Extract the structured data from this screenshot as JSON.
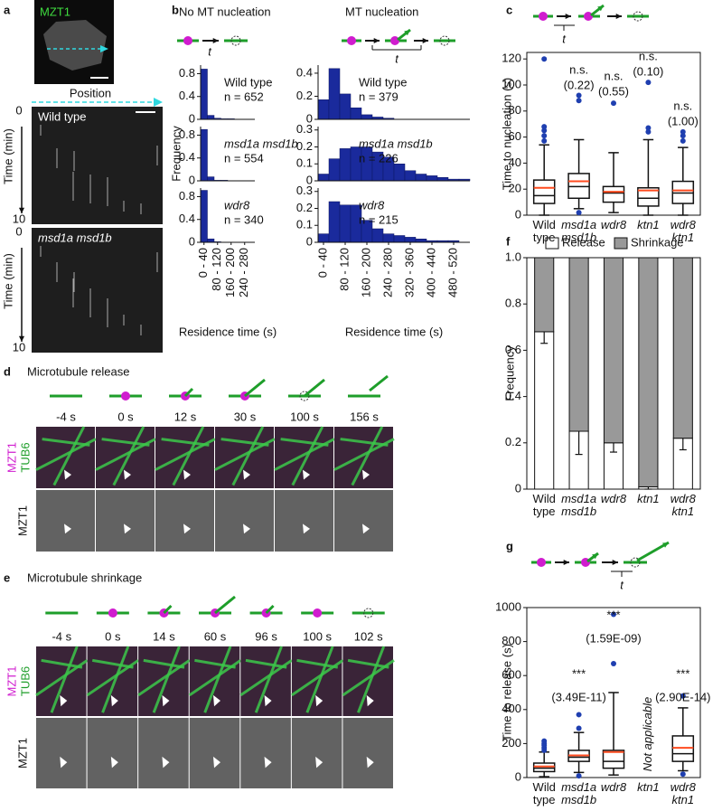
{
  "panel_labels": [
    "a",
    "b",
    "c",
    "d",
    "e",
    "f",
    "g"
  ],
  "panel_a": {
    "image_label": "MZT1",
    "position_label": "Position",
    "kymographs": [
      {
        "label": "Wild type",
        "time_label": "Time (min)",
        "ticks": [
          0,
          10
        ]
      },
      {
        "label": "msd1a msd1b",
        "time_label": "Time (min)",
        "ticks": [
          0,
          10
        ]
      }
    ]
  },
  "panel_b": {
    "headings": [
      "No MT nucleation",
      "MT nucleation"
    ],
    "diagram_labels": [
      "t",
      "t"
    ]
  },
  "panel_c": {
    "diagram_label": "t"
  },
  "panel_g": {
    "diagram_label": "t"
  },
  "panel_d": {
    "title": "Microtubule release",
    "times": [
      "-4 s",
      "0 s",
      "12 s",
      "30 s",
      "100 s",
      "156 s"
    ],
    "merge_labels": [
      "MZT1",
      "TUB6"
    ],
    "gray_label": "MZT1"
  },
  "panel_e": {
    "title": "Microtubule shrinkage",
    "times": [
      "-4 s",
      "0 s",
      "14 s",
      "60 s",
      "96 s",
      "100 s",
      "102 s"
    ],
    "merge_labels": [
      "MZT1",
      "TUB6"
    ],
    "gray_label": "MZT1"
  },
  "chart_data": [
    {
      "type": "histogram",
      "label": "Wild type",
      "n_label": "n = 652",
      "color": "#1a2a9c",
      "bins": [
        0,
        40,
        80,
        120,
        160,
        200,
        240,
        280,
        320
      ],
      "values": [
        0.88,
        0.07,
        0.02,
        0.01,
        0.01,
        0,
        0,
        0
      ],
      "xlim": [
        0,
        320
      ],
      "ylim": [
        0,
        0.95
      ],
      "yticks": [
        0,
        0.4,
        0.8
      ]
    },
    {
      "type": "histogram",
      "label": "msd1a msd1b",
      "n_label": "n = 554",
      "color": "#1a2a9c",
      "y_label": "Frequency",
      "bins": [
        0,
        40,
        80,
        120,
        160,
        200,
        240,
        280,
        320
      ],
      "values": [
        0.9,
        0.07,
        0.01,
        0.01,
        0,
        0,
        0,
        0
      ],
      "xlim": [
        0,
        320
      ],
      "ylim": [
        0,
        0.95
      ],
      "yticks": [
        0,
        0.4,
        0.8
      ]
    },
    {
      "type": "histogram",
      "label": "wdr8",
      "n_label": "n = 340",
      "color": "#1a2a9c",
      "x_label": "Residence time (s)",
      "bins": [
        0,
        40,
        80,
        120,
        160,
        200,
        240,
        280,
        320
      ],
      "values": [
        0.91,
        0.06,
        0.01,
        0,
        0,
        0,
        0,
        0
      ],
      "xlim": [
        0,
        320
      ],
      "ylim": [
        0,
        0.95
      ],
      "yticks": [
        0,
        0.4,
        0.8
      ],
      "xticks": [
        {
          "value": 20,
          "label": "0 - 40"
        },
        {
          "value": 100,
          "label": "80 - 120"
        },
        {
          "value": 180,
          "label": "160 - 200"
        },
        {
          "value": 260,
          "label": "240 - 280"
        }
      ]
    },
    {
      "type": "histogram",
      "label": "Wild type",
      "n_label": "n = 379",
      "color": "#1a2a9c",
      "bins": [
        0,
        40,
        80,
        120,
        160,
        200,
        240,
        280,
        320,
        360,
        400,
        440,
        480,
        520,
        560
      ],
      "values": [
        0.17,
        0.44,
        0.22,
        0.1,
        0.04,
        0.02,
        0.01,
        0,
        0,
        0,
        0,
        0,
        0,
        0
      ],
      "xlim": [
        0,
        560
      ],
      "ylim": [
        0,
        0.47
      ],
      "yticks": [
        0,
        0.2,
        0.4
      ]
    },
    {
      "type": "histogram",
      "label": "msd1a msd1b",
      "n_label": "n = 226",
      "color": "#1a2a9c",
      "bins": [
        0,
        40,
        80,
        120,
        160,
        200,
        240,
        280,
        320,
        360,
        400,
        440,
        480,
        520,
        560
      ],
      "values": [
        0.04,
        0.13,
        0.19,
        0.2,
        0.2,
        0.17,
        0.14,
        0.1,
        0.06,
        0.04,
        0.03,
        0.02,
        0.01,
        0.01
      ],
      "xlim": [
        0,
        560
      ],
      "ylim": [
        0,
        0.32
      ],
      "yticks": [
        0,
        0.1,
        0.2,
        0.3
      ]
    },
    {
      "type": "histogram",
      "label": "wdr8",
      "n_label": "n = 215",
      "color": "#1a2a9c",
      "x_label": "Residence time (s)",
      "bins": [
        0,
        40,
        80,
        120,
        160,
        200,
        240,
        280,
        320,
        360,
        400,
        440,
        480,
        520,
        560
      ],
      "values": [
        0.05,
        0.24,
        0.22,
        0.22,
        0.13,
        0.08,
        0.05,
        0.04,
        0.03,
        0.02,
        0.01,
        0.01,
        0.01,
        0
      ],
      "xlim": [
        0,
        560
      ],
      "ylim": [
        0,
        0.32
      ],
      "yticks": [
        0,
        0.1,
        0.2,
        0.3
      ],
      "xticks": [
        {
          "value": 20,
          "label": "0 - 40"
        },
        {
          "value": 100,
          "label": "80 - 120"
        },
        {
          "value": 180,
          "label": "160 - 200"
        },
        {
          "value": 260,
          "label": "240 - 280"
        },
        {
          "value": 340,
          "label": "320 - 360"
        },
        {
          "value": 420,
          "label": "400 - 440"
        },
        {
          "value": 500,
          "label": "480 - 520"
        }
      ]
    },
    {
      "type": "box",
      "y_label": "Time to nucleation (s)",
      "color": "#1f3fb0",
      "mean_color": "#ff4b1f",
      "categories": [
        "Wild type",
        "msd1a msd1b",
        "wdr8",
        "ktn1",
        "wdr8 ktn1"
      ],
      "boxes": [
        {
          "whislo": 0,
          "q1": 9,
          "med": 15,
          "mean": 21,
          "q3": 27,
          "whishi": 54,
          "fliers": [
            57,
            61,
            65,
            68,
            120
          ]
        },
        {
          "whislo": 5,
          "q1": 13,
          "med": 22,
          "mean": 26,
          "q3": 32,
          "whishi": 58,
          "fliers": [
            2,
            88,
            92
          ]
        },
        {
          "whislo": 2,
          "q1": 10,
          "med": 17,
          "mean": 18,
          "q3": 22,
          "whishi": 48,
          "fliers": [
            86
          ]
        },
        {
          "whislo": 0,
          "q1": 7,
          "med": 13,
          "mean": 19,
          "q3": 21,
          "whishi": 58,
          "fliers": [
            64,
            67,
            102
          ]
        },
        {
          "whislo": 0,
          "q1": 9,
          "med": 17,
          "mean": 19,
          "q3": 26,
          "whishi": 52,
          "fliers": [
            57,
            61,
            64
          ]
        }
      ],
      "annotations": [
        null,
        [
          "n.s.",
          "(0.22)"
        ],
        [
          "n.s.",
          "(0.55)"
        ],
        [
          "n.s.",
          "(0.10)"
        ],
        [
          "n.s.",
          "(1.00)"
        ]
      ],
      "ylim": [
        0,
        125
      ],
      "yticks": [
        0,
        20,
        40,
        60,
        80,
        100,
        120
      ]
    },
    {
      "type": "bar",
      "stacked": true,
      "y_label": "Frequency",
      "categories": [
        "Wild type",
        "msd1a msd1b",
        "wdr8",
        "ktn1",
        "wdr8 ktn1"
      ],
      "series": [
        {
          "name": "Release",
          "color": "#ffffff",
          "values": [
            0.68,
            0.25,
            0.2,
            0.01,
            0.22
          ],
          "errors": [
            0.05,
            0.1,
            0.04,
            0.01,
            0.05
          ]
        },
        {
          "name": "Shrinkage",
          "color": "#999999",
          "values": [
            0.32,
            0.75,
            0.8,
            0.99,
            0.78
          ]
        }
      ],
      "ylim": [
        0,
        1
      ],
      "yticks": [
        0,
        0.2,
        0.4,
        0.6,
        0.8,
        {
          "value": 1,
          "label": "1.0"
        }
      ]
    },
    {
      "type": "box",
      "y_label": "Time to release (s)",
      "color": "#1f3fb0",
      "mean_color": "#ff4b1f",
      "categories": [
        "Wild type",
        "msd1a msd1b",
        "wdr8",
        "ktn1",
        "wdr8 ktn1"
      ],
      "boxes": [
        {
          "whislo": 5,
          "q1": 35,
          "med": 55,
          "mean": 65,
          "q3": 85,
          "whishi": 150,
          "fliers": [
            160,
            175,
            190,
            200,
            215
          ]
        },
        {
          "whislo": 30,
          "q1": 95,
          "med": 120,
          "mean": 130,
          "q3": 160,
          "whishi": 265,
          "fliers": [
            10,
            290,
            370
          ]
        },
        {
          "whislo": 15,
          "q1": 55,
          "med": 95,
          "mean": 150,
          "q3": 160,
          "whishi": 500,
          "fliers": [
            670,
            960
          ]
        },
        null,
        {
          "whislo": 40,
          "q1": 95,
          "med": 140,
          "mean": 175,
          "q3": 245,
          "whishi": 410,
          "fliers": [
            20,
            480
          ]
        }
      ],
      "annotations": [
        null,
        [
          "***",
          "(3.49E-11)"
        ],
        [
          "***",
          "(1.59E-09)"
        ],
        [
          "Not applicable"
        ],
        [
          "***",
          "(2.90E-14)"
        ]
      ],
      "ylim": [
        0,
        1000
      ],
      "yticks": [
        0,
        200,
        400,
        600,
        800,
        1000
      ]
    }
  ]
}
